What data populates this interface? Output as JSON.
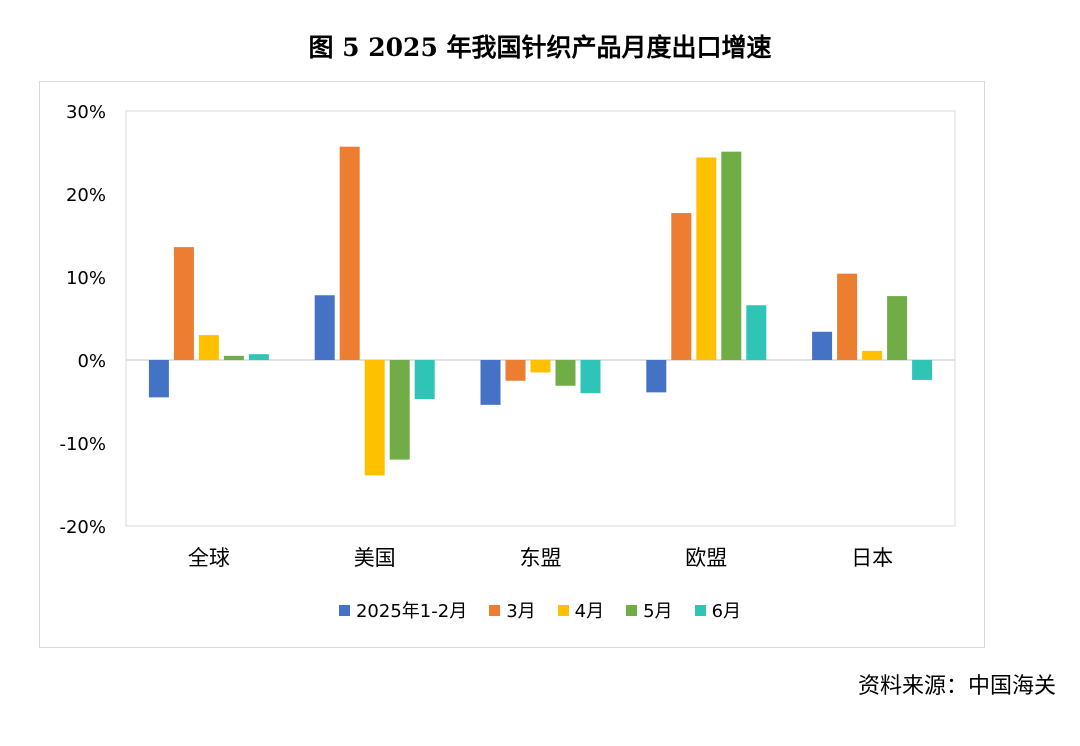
{
  "title": "图 5   2025 年我国针织产品月度出口增速",
  "source": "资料来源：中国海关",
  "chart_data": {
    "type": "bar",
    "categories": [
      "全球",
      "美国",
      "东盟",
      "欧盟",
      "日本"
    ],
    "series": [
      {
        "name": "2025年1-2月",
        "color": "#4472c4",
        "values": [
          -4.5,
          7.8,
          -5.4,
          -3.9,
          3.4
        ]
      },
      {
        "name": "3月",
        "color": "#ed7d31",
        "values": [
          13.6,
          25.7,
          -2.5,
          17.7,
          10.4
        ]
      },
      {
        "name": "4月",
        "color": "#ffc000",
        "values": [
          3.0,
          -13.9,
          -1.5,
          24.4,
          1.1
        ]
      },
      {
        "name": "5月",
        "color": "#70ad47",
        "values": [
          0.5,
          -12.0,
          -3.1,
          25.1,
          7.7
        ]
      },
      {
        "name": "6月",
        "color": "#2ec4b6",
        "values": [
          0.7,
          -4.7,
          -4.0,
          6.6,
          -2.4
        ]
      }
    ],
    "ylim": [
      -20,
      30
    ],
    "yticks": [
      30,
      20,
      10,
      0,
      -10,
      -20
    ],
    "ytick_labels": [
      "30%",
      "20%",
      "10%",
      "0%",
      "-10%",
      "-20%"
    ],
    "grid": true,
    "legend_position": "bottom"
  }
}
